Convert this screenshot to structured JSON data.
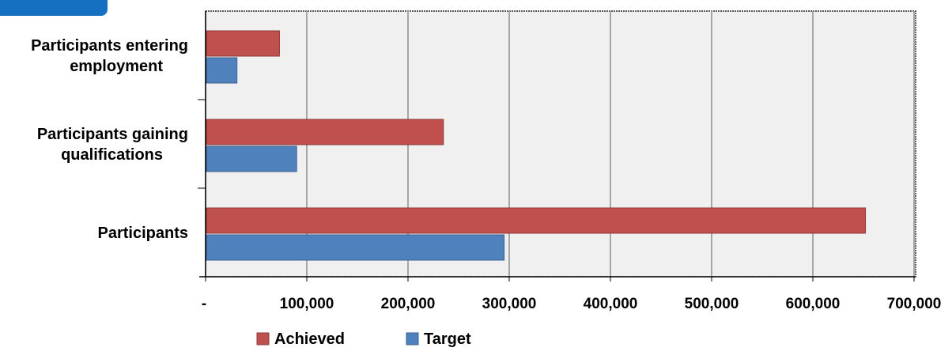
{
  "colors": {
    "achieved": "#c0504d",
    "target": "#4f81bd",
    "plot_bg": "#f0f0f0",
    "grid": "#a6a6a6",
    "tab_badge": "#1570c2"
  },
  "chart_data": {
    "type": "bar",
    "orientation": "horizontal",
    "categories": [
      [
        "Participants entering",
        "employment"
      ],
      [
        "Participants gaining",
        "qualifications"
      ],
      [
        "Participants"
      ]
    ],
    "series": [
      {
        "name": "Achieved",
        "values": [
          73000,
          235000,
          652000
        ]
      },
      {
        "name": "Target",
        "values": [
          31000,
          90000,
          295000
        ]
      }
    ],
    "x_ticks": [
      "-",
      "100,000",
      "200,000",
      "300,000",
      "400,000",
      "500,000",
      "600,000",
      "700,000"
    ],
    "xlim": [
      0,
      700000
    ],
    "grid": true,
    "legend_position": "bottom"
  }
}
